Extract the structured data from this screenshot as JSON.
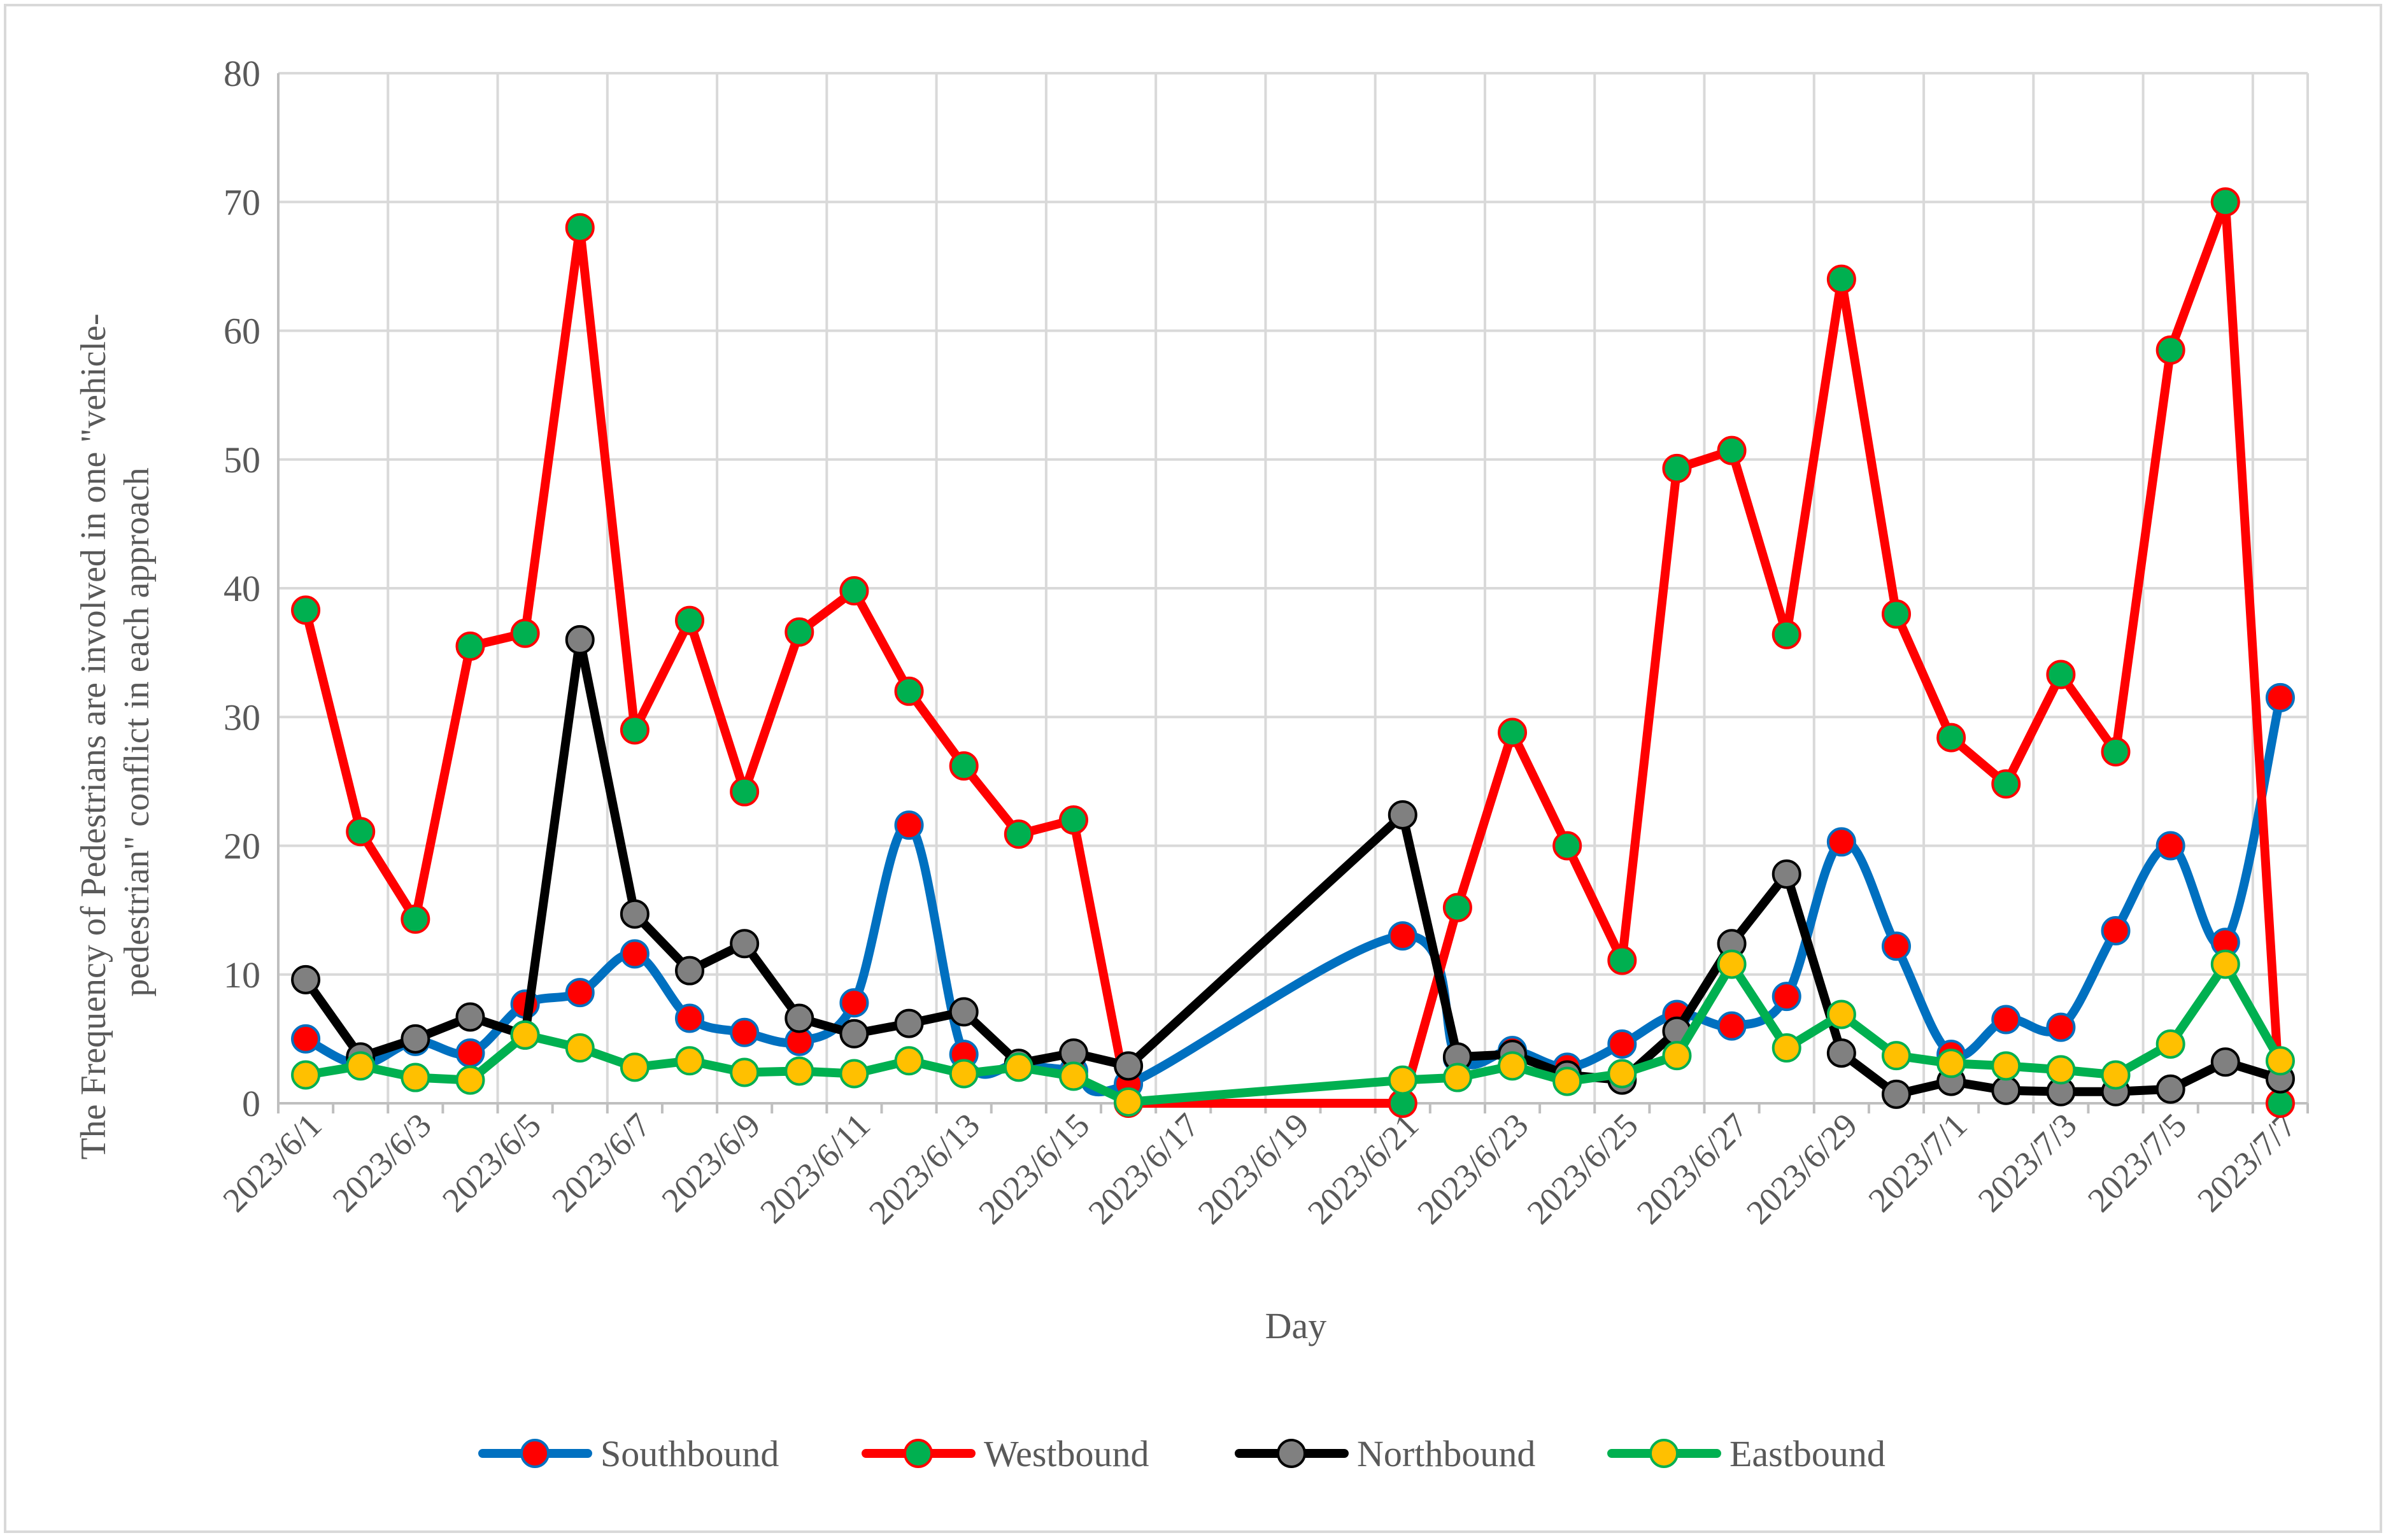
{
  "chart_data": {
    "type": "line",
    "xlabel": "Day",
    "ylabel": "The Frequency of Pedestrians are involved in one \"vehicle-pedestrian\" conflict in each approach",
    "ylabel_lines": [
      "The Frequency of Pedestrians are involved in one \"vehicle-",
      "pedestrian\" conflict in each approach"
    ],
    "ylim": [
      0,
      80
    ],
    "yticks": [
      0,
      10,
      20,
      30,
      40,
      50,
      60,
      70,
      80
    ],
    "xlim": [
      "2023-06-01",
      "2023-07-07"
    ],
    "xtick_labels": [
      "2023/6/1",
      "2023/6/3",
      "2023/6/5",
      "2023/6/7",
      "2023/6/9",
      "2023/6/11",
      "2023/6/13",
      "2023/6/15",
      "2023/6/17",
      "2023/6/19",
      "2023/6/21",
      "2023/6/23",
      "2023/6/25",
      "2023/6/27",
      "2023/6/29",
      "2023/7/1",
      "2023/7/3",
      "2023/7/5",
      "2023/7/7"
    ],
    "grid": true,
    "legend_position": "bottom",
    "series": [
      {
        "name": "Southbound",
        "line_color": "#0070C0",
        "marker_color": "#FF0000",
        "smooth": true,
        "points": [
          [
            "2023-06-01",
            5
          ],
          [
            "2023-06-02",
            3
          ],
          [
            "2023-06-03",
            4.8
          ],
          [
            "2023-06-04",
            3.9
          ],
          [
            "2023-06-05",
            7.7
          ],
          [
            "2023-06-06",
            8.6
          ],
          [
            "2023-06-07",
            11.6
          ],
          [
            "2023-06-08",
            6.6
          ],
          [
            "2023-06-09",
            5.5
          ],
          [
            "2023-06-10",
            4.8
          ],
          [
            "2023-06-11",
            7.8
          ],
          [
            "2023-06-12",
            21.6
          ],
          [
            "2023-06-13",
            3.8
          ],
          [
            "2023-06-14",
            3.0
          ],
          [
            "2023-06-15",
            2.5
          ],
          [
            "2023-06-16",
            1.5
          ],
          [
            "2023-06-21",
            13.0
          ],
          [
            "2023-06-22",
            3.5
          ],
          [
            "2023-06-23",
            4.1
          ],
          [
            "2023-06-24",
            2.8
          ],
          [
            "2023-06-25",
            4.6
          ],
          [
            "2023-06-26",
            6.9
          ],
          [
            "2023-06-27",
            6.0
          ],
          [
            "2023-06-28",
            8.3
          ],
          [
            "2023-06-29",
            20.3
          ],
          [
            "2023-06-30",
            12.2
          ],
          [
            "2023-07-01",
            3.8
          ],
          [
            "2023-07-02",
            6.5
          ],
          [
            "2023-07-03",
            5.9
          ],
          [
            "2023-07-04",
            13.4
          ],
          [
            "2023-07-05",
            20.0
          ],
          [
            "2023-07-06",
            12.5
          ],
          [
            "2023-07-07",
            31.5
          ]
        ]
      },
      {
        "name": "Westbound",
        "line_color": "#FF0000",
        "marker_color": "#00B050",
        "smooth": false,
        "points": [
          [
            "2023-06-01",
            38.3
          ],
          [
            "2023-06-02",
            21.1
          ],
          [
            "2023-06-03",
            14.3
          ],
          [
            "2023-06-04",
            35.5
          ],
          [
            "2023-06-05",
            36.5
          ],
          [
            "2023-06-06",
            68.0
          ],
          [
            "2023-06-07",
            29.0
          ],
          [
            "2023-06-08",
            37.5
          ],
          [
            "2023-06-09",
            24.2
          ],
          [
            "2023-06-10",
            36.6
          ],
          [
            "2023-06-11",
            39.8
          ],
          [
            "2023-06-12",
            32.0
          ],
          [
            "2023-06-13",
            26.2
          ],
          [
            "2023-06-14",
            20.9
          ],
          [
            "2023-06-15",
            22.0
          ],
          [
            "2023-06-16",
            0
          ],
          [
            "2023-06-21",
            0
          ],
          [
            "2023-06-22",
            15.2
          ],
          [
            "2023-06-23",
            28.8
          ],
          [
            "2023-06-24",
            20.0
          ],
          [
            "2023-06-25",
            11.1
          ],
          [
            "2023-06-26",
            49.3
          ],
          [
            "2023-06-27",
            50.7
          ],
          [
            "2023-06-28",
            36.4
          ],
          [
            "2023-06-29",
            64.0
          ],
          [
            "2023-06-30",
            38.0
          ],
          [
            "2023-07-01",
            28.4
          ],
          [
            "2023-07-02",
            24.8
          ],
          [
            "2023-07-03",
            33.3
          ],
          [
            "2023-07-04",
            27.3
          ],
          [
            "2023-07-05",
            58.5
          ],
          [
            "2023-07-06",
            70.0
          ],
          [
            "2023-07-07",
            0
          ]
        ]
      },
      {
        "name": "Northbound",
        "line_color": "#000000",
        "marker_color": "#808080",
        "smooth": false,
        "points": [
          [
            "2023-06-01",
            9.6
          ],
          [
            "2023-06-02",
            3.6
          ],
          [
            "2023-06-03",
            5.0
          ],
          [
            "2023-06-04",
            6.7
          ],
          [
            "2023-06-05",
            5.3
          ],
          [
            "2023-06-06",
            36.0
          ],
          [
            "2023-06-07",
            14.7
          ],
          [
            "2023-06-08",
            10.3
          ],
          [
            "2023-06-09",
            12.4
          ],
          [
            "2023-06-10",
            6.6
          ],
          [
            "2023-06-11",
            5.4
          ],
          [
            "2023-06-12",
            6.2
          ],
          [
            "2023-06-13",
            7.1
          ],
          [
            "2023-06-14",
            3.1
          ],
          [
            "2023-06-15",
            3.9
          ],
          [
            "2023-06-16",
            2.9
          ],
          [
            "2023-06-21",
            22.4
          ],
          [
            "2023-06-22",
            3.6
          ],
          [
            "2023-06-23",
            3.8
          ],
          [
            "2023-06-24",
            2.2
          ],
          [
            "2023-06-25",
            1.8
          ],
          [
            "2023-06-26",
            5.6
          ],
          [
            "2023-06-27",
            12.4
          ],
          [
            "2023-06-28",
            17.8
          ],
          [
            "2023-06-29",
            3.9
          ],
          [
            "2023-06-30",
            0.7
          ],
          [
            "2023-07-01",
            1.7
          ],
          [
            "2023-07-02",
            1.0
          ],
          [
            "2023-07-03",
            0.9
          ],
          [
            "2023-07-04",
            0.9
          ],
          [
            "2023-07-05",
            1.1
          ],
          [
            "2023-07-06",
            3.2
          ],
          [
            "2023-07-07",
            1.9
          ]
        ]
      },
      {
        "name": "Eastbound",
        "line_color": "#00B050",
        "marker_color": "#FFC000",
        "smooth": false,
        "points": [
          [
            "2023-06-01",
            2.2
          ],
          [
            "2023-06-02",
            2.9
          ],
          [
            "2023-06-03",
            2.0
          ],
          [
            "2023-06-04",
            1.8
          ],
          [
            "2023-06-05",
            5.3
          ],
          [
            "2023-06-06",
            4.3
          ],
          [
            "2023-06-07",
            2.8
          ],
          [
            "2023-06-08",
            3.3
          ],
          [
            "2023-06-09",
            2.4
          ],
          [
            "2023-06-10",
            2.5
          ],
          [
            "2023-06-11",
            2.3
          ],
          [
            "2023-06-12",
            3.3
          ],
          [
            "2023-06-13",
            2.3
          ],
          [
            "2023-06-14",
            2.8
          ],
          [
            "2023-06-15",
            2.1
          ],
          [
            "2023-06-16",
            0.1
          ],
          [
            "2023-06-21",
            1.8
          ],
          [
            "2023-06-22",
            2.0
          ],
          [
            "2023-06-23",
            2.9
          ],
          [
            "2023-06-24",
            1.7
          ],
          [
            "2023-06-25",
            2.3
          ],
          [
            "2023-06-26",
            3.7
          ],
          [
            "2023-06-27",
            10.8
          ],
          [
            "2023-06-28",
            4.3
          ],
          [
            "2023-06-29",
            6.9
          ],
          [
            "2023-06-30",
            3.7
          ],
          [
            "2023-07-01",
            3.1
          ],
          [
            "2023-07-02",
            2.9
          ],
          [
            "2023-07-03",
            2.6
          ],
          [
            "2023-07-04",
            2.2
          ],
          [
            "2023-07-05",
            4.6
          ],
          [
            "2023-07-06",
            10.8
          ],
          [
            "2023-07-07",
            3.3
          ]
        ]
      }
    ]
  }
}
